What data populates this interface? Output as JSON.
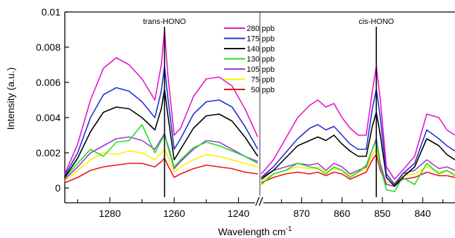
{
  "chart_data": {
    "type": "line",
    "ylabel": "Intensity (a.u.)",
    "xlabel": "Wavelength cm",
    "xlabel_superscript": "-1",
    "ylim": [
      0,
      0.01
    ],
    "y_ticks": [
      "0",
      "0.002",
      "0.004",
      "0.006",
      "0.008",
      "0.01"
    ],
    "y_tick_values": [
      0,
      0.002,
      0.004,
      0.006,
      0.008,
      0.01
    ],
    "panels": [
      {
        "name": "left",
        "xlim": [
          1294,
          1234
        ],
        "x_ticks": [
          1280,
          1260,
          1240
        ],
        "annotation": {
          "text": "trans-HONO",
          "x": 1263
        }
      },
      {
        "name": "right",
        "xlim": [
          880,
          832
        ],
        "x_ticks": [
          870,
          860,
          850,
          840
        ],
        "annotation": {
          "text": "cis-HONO",
          "x": 851.5
        }
      }
    ],
    "x": {
      "left": [
        1294,
        1290,
        1286,
        1282,
        1278,
        1274,
        1270,
        1266,
        1264,
        1263,
        1262,
        1260,
        1258,
        1254,
        1250,
        1246,
        1242,
        1238,
        1234
      ],
      "right": [
        880,
        877,
        874,
        871,
        868,
        866,
        864,
        862,
        860,
        858,
        856,
        854,
        852.5,
        851.5,
        850.5,
        849,
        847,
        845,
        842,
        839,
        836,
        834,
        832
      ]
    },
    "series": [
      {
        "name": "280 ppb",
        "color": "#e614c8",
        "left": [
          0.0008,
          0.0025,
          0.005,
          0.0068,
          0.0074,
          0.007,
          0.0062,
          0.005,
          0.007,
          0.009,
          0.0065,
          0.003,
          0.0034,
          0.0052,
          0.0062,
          0.0063,
          0.0058,
          0.0045,
          0.0029
        ],
        "right": [
          0.0008,
          0.0016,
          0.0028,
          0.004,
          0.0047,
          0.005,
          0.0046,
          0.0048,
          0.004,
          0.0034,
          0.003,
          0.003,
          0.0055,
          0.0069,
          0.005,
          0.0012,
          0.0005,
          0.001,
          0.0018,
          0.0042,
          0.004,
          0.0033,
          0.003
        ]
      },
      {
        "name": "175 ppb",
        "color": "#1f2fd6",
        "left": [
          0.0007,
          0.002,
          0.004,
          0.0053,
          0.0057,
          0.0055,
          0.0049,
          0.004,
          0.0055,
          0.0069,
          0.0052,
          0.0022,
          0.0028,
          0.0042,
          0.0049,
          0.005,
          0.0046,
          0.0035,
          0.0022
        ],
        "right": [
          0.0006,
          0.0012,
          0.002,
          0.0028,
          0.0034,
          0.0036,
          0.0033,
          0.0035,
          0.003,
          0.0025,
          0.0022,
          0.0022,
          0.0045,
          0.0056,
          0.004,
          0.0008,
          0.0002,
          0.0008,
          0.0014,
          0.0033,
          0.0028,
          0.0024,
          0.0021
        ]
      },
      {
        "name": "140 ppb",
        "color": "#000000",
        "left": [
          0.0006,
          0.0017,
          0.0032,
          0.0043,
          0.0046,
          0.0045,
          0.004,
          0.0033,
          0.0045,
          0.0056,
          0.0042,
          0.0016,
          0.0022,
          0.0034,
          0.0041,
          0.0042,
          0.0038,
          0.0029,
          0.0018
        ],
        "right": [
          0.0005,
          0.001,
          0.0017,
          0.0024,
          0.0027,
          0.0029,
          0.0027,
          0.003,
          0.0025,
          0.0021,
          0.0018,
          0.0018,
          0.0035,
          0.0043,
          0.003,
          0.0006,
          0.0001,
          0.0006,
          0.0012,
          0.0028,
          0.0024,
          0.0019,
          0.0016
        ]
      },
      {
        "name": "130 ppb",
        "color": "#22dd22",
        "left": [
          0.0006,
          0.0014,
          0.0022,
          0.0018,
          0.0026,
          0.0027,
          0.0036,
          0.002,
          0.0027,
          0.003,
          0.0025,
          0.0012,
          0.0016,
          0.0023,
          0.0026,
          0.0024,
          0.0021,
          0.0018,
          0.0014
        ],
        "right": [
          0.0002,
          0.0008,
          0.001,
          0.0014,
          0.0012,
          0.0011,
          0.0008,
          0.0012,
          0.001,
          0.0006,
          0.0009,
          0.0013,
          0.0022,
          0.0027,
          0.0012,
          -0.0001,
          -0.0002,
          0.0006,
          0.0002,
          0.0014,
          0.0008,
          0.001,
          0.0007
        ]
      },
      {
        "name": "105 ppb",
        "color": "#a03ad4",
        "left": [
          0.0005,
          0.0012,
          0.002,
          0.0024,
          0.0028,
          0.0029,
          0.0027,
          0.0022,
          0.0028,
          0.0031,
          0.0024,
          0.0011,
          0.0015,
          0.0022,
          0.0027,
          0.0026,
          0.0022,
          0.0018,
          0.0015
        ],
        "right": [
          0.0006,
          0.001,
          0.0012,
          0.0014,
          0.0013,
          0.0014,
          0.001,
          0.0014,
          0.0012,
          0.0008,
          0.001,
          0.0012,
          0.0022,
          0.0028,
          0.0014,
          0.0002,
          0.0001,
          0.0008,
          0.001,
          0.0016,
          0.0011,
          0.0012,
          0.001
        ]
      },
      {
        "name": "75 ppb",
        "color": "#ffee00",
        "left": [
          0.0004,
          0.001,
          0.0016,
          0.002,
          0.0019,
          0.0021,
          0.002,
          0.0016,
          0.002,
          0.0022,
          0.0018,
          0.0009,
          0.0012,
          0.0016,
          0.0019,
          0.0018,
          0.0016,
          0.0014,
          0.0012
        ],
        "right": [
          0.0004,
          0.0008,
          0.001,
          0.0012,
          0.0011,
          0.0012,
          0.0009,
          0.0011,
          0.001,
          0.0007,
          0.0009,
          0.0011,
          0.0019,
          0.0022,
          0.0012,
          0.0003,
          0.0003,
          0.0007,
          0.0008,
          0.0012,
          0.0009,
          0.001,
          0.0008
        ]
      },
      {
        "name": "50 ppb",
        "color": "#ee1111",
        "left": [
          0.0003,
          0.0006,
          0.001,
          0.0012,
          0.0013,
          0.0014,
          0.0014,
          0.0012,
          0.0015,
          0.0017,
          0.0013,
          0.0006,
          0.0008,
          0.0011,
          0.0013,
          0.0012,
          0.0011,
          0.0009,
          0.0008
        ],
        "right": [
          0.0003,
          0.0006,
          0.0008,
          0.0009,
          0.0008,
          0.0009,
          0.0007,
          0.0009,
          0.0008,
          0.0005,
          0.0007,
          0.0009,
          0.0016,
          0.0019,
          0.001,
          0.0002,
          0.0001,
          0.0005,
          0.0006,
          0.0009,
          0.0007,
          0.0007,
          0.0006
        ]
      }
    ],
    "legend_placement": "top-center",
    "grid": false
  }
}
